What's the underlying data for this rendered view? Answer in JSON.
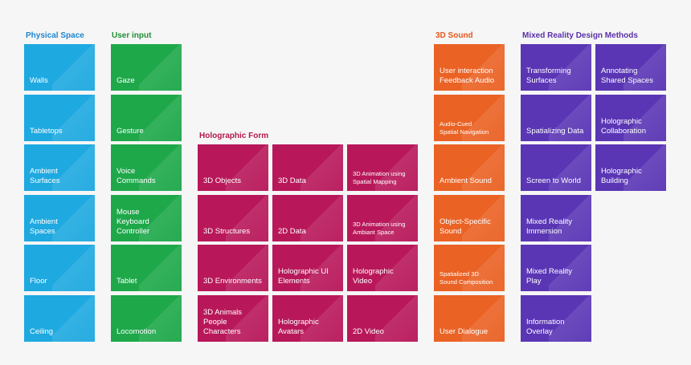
{
  "colors": {
    "physical": "#1ea9e0",
    "input": "#1ea84a",
    "holographic": "#b8185a",
    "sound": "#ea6224",
    "mixed": "#5a36b5"
  },
  "physical": {
    "title": "Physical Space",
    "items": [
      "Walls",
      "Tabletops",
      "Ambient\nSurfaces",
      "Ambient\nSpaces",
      "Floor",
      "Ceiling"
    ]
  },
  "input": {
    "title": "User input",
    "items": [
      "Gaze",
      "Gesture",
      "Voice\nCommands",
      "Mouse\nKeyboard\nController",
      "Tablet",
      "Locomotion"
    ]
  },
  "holographic": {
    "title": "Holographic Form",
    "items": [
      "3D Objects",
      "3D Data",
      "3D Animation using\nSpatial Mapping",
      "3D Structures",
      "2D Data",
      "3D Animation using\nAmbiant Space",
      "3D Environments",
      "Holographic UI\nElements",
      "Holographic\nVideo",
      "3D Animals\nPeople\nCharacters",
      "Holographic\nAvatars",
      "2D Video"
    ]
  },
  "sound": {
    "title": "3D Sound",
    "items": [
      "User interaction\nFeedback Audio",
      "Audio-Cued\nSpatial Navigation",
      "Ambient Sound",
      "Object-Specific\nSound",
      "Spatialized 3D\nSound Composition",
      "User Dialogue"
    ]
  },
  "mixed": {
    "title": "Mixed Reality Design Methods",
    "items": [
      "Transforming\nSurfaces",
      "Annotating\nShared Spaces",
      "Spatializing Data",
      "Holographic\nCollaboration",
      "Screen to World",
      "Holographic\nBuilding",
      "Mixed Reality\nImmersion",
      "Mixed Reality\nPlay",
      "Information\nOverlay"
    ]
  }
}
